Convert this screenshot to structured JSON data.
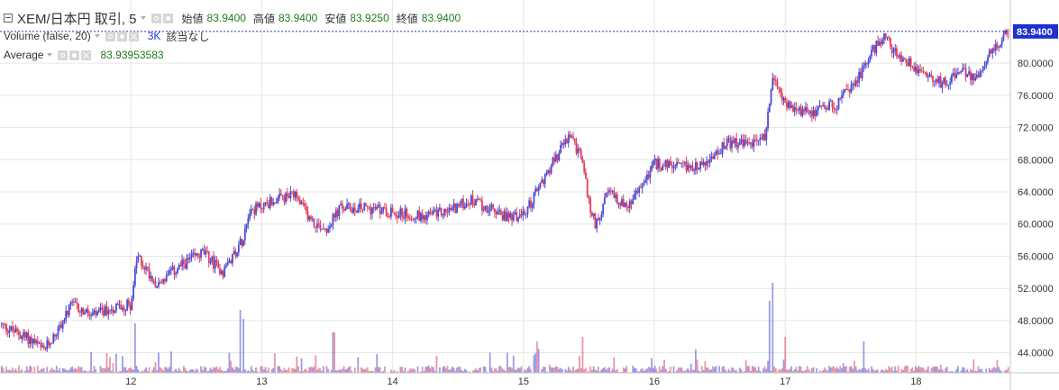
{
  "header": {
    "symbol_title": "XEM/日本円 取引, 5",
    "ohlc": [
      {
        "label": "始値",
        "value": "83.9400"
      },
      {
        "label": "高値",
        "value": "83.9400"
      },
      {
        "label": "安値",
        "value": "83.9250"
      },
      {
        "label": "終値",
        "value": "83.9400"
      }
    ]
  },
  "indicators": {
    "volume": {
      "label": "Volume (false, 20)",
      "value": "3K",
      "note": "該当なし"
    },
    "average": {
      "label": "Average",
      "value": "83.93953583"
    }
  },
  "chart_data": {
    "type": "candlestick",
    "x_ticks": [
      "12",
      "13",
      "14",
      "15",
      "16",
      "17",
      "18"
    ],
    "y_ticks": [
      "44.0000",
      "48.0000",
      "52.0000",
      "56.0000",
      "60.0000",
      "64.0000",
      "68.0000",
      "72.0000",
      "76.0000",
      "80.0000"
    ],
    "ylim": [
      41.5,
      86.5
    ],
    "last_price": "83.9400",
    "last_price_value": 83.94,
    "colors": {
      "up": "#4b4bd6",
      "down": "#e0405a",
      "grid": "#e6e6e6",
      "last_price": "#1f2fd0"
    },
    "close_series": [
      [
        11.0,
        47.5
      ],
      [
        11.25,
        45.5
      ],
      [
        11.33,
        44.2
      ],
      [
        11.45,
        47.0
      ],
      [
        11.55,
        50.0
      ],
      [
        11.7,
        48.5
      ],
      [
        11.85,
        49.5
      ],
      [
        12.0,
        50.0
      ],
      [
        12.05,
        56.0
      ],
      [
        12.2,
        52.5
      ],
      [
        12.4,
        55.0
      ],
      [
        12.55,
        56.5
      ],
      [
        12.7,
        54.0
      ],
      [
        12.85,
        58.0
      ],
      [
        12.9,
        61.5
      ],
      [
        13.1,
        63.0
      ],
      [
        13.25,
        63.5
      ],
      [
        13.4,
        60.0
      ],
      [
        13.5,
        59.5
      ],
      [
        13.6,
        62.0
      ],
      [
        13.8,
        62.0
      ],
      [
        14.0,
        61.5
      ],
      [
        14.2,
        61.0
      ],
      [
        14.4,
        61.5
      ],
      [
        14.6,
        63.0
      ],
      [
        14.85,
        61.0
      ],
      [
        15.0,
        61.0
      ],
      [
        15.2,
        67.0
      ],
      [
        15.35,
        71.0
      ],
      [
        15.45,
        68.0
      ],
      [
        15.5,
        62.5
      ],
      [
        15.55,
        60.0
      ],
      [
        15.65,
        64.0
      ],
      [
        15.8,
        62.0
      ],
      [
        16.0,
        67.5
      ],
      [
        16.2,
        67.0
      ],
      [
        16.4,
        67.5
      ],
      [
        16.55,
        70.0
      ],
      [
        16.75,
        70.0
      ],
      [
        16.85,
        71.0
      ],
      [
        16.9,
        78.0
      ],
      [
        17.05,
        74.0
      ],
      [
        17.2,
        74.0
      ],
      [
        17.4,
        75.0
      ],
      [
        17.55,
        78.0
      ],
      [
        17.65,
        81.0
      ],
      [
        17.75,
        83.5
      ],
      [
        17.85,
        81.0
      ],
      [
        18.0,
        79.5
      ],
      [
        18.2,
        77.5
      ],
      [
        18.35,
        79.0
      ],
      [
        18.45,
        78.0
      ],
      [
        18.55,
        81.0
      ],
      [
        18.65,
        82.5
      ],
      [
        18.7,
        83.94
      ]
    ],
    "volume_spikes": [
      [
        12.03,
        0.55
      ],
      [
        12.84,
        0.7
      ],
      [
        12.86,
        0.6
      ],
      [
        13.55,
        0.45
      ],
      [
        15.1,
        0.35
      ],
      [
        15.45,
        0.4
      ],
      [
        16.88,
        0.8
      ],
      [
        16.9,
        1.0
      ],
      [
        17.6,
        0.35
      ],
      [
        17.0,
        0.4
      ]
    ]
  }
}
